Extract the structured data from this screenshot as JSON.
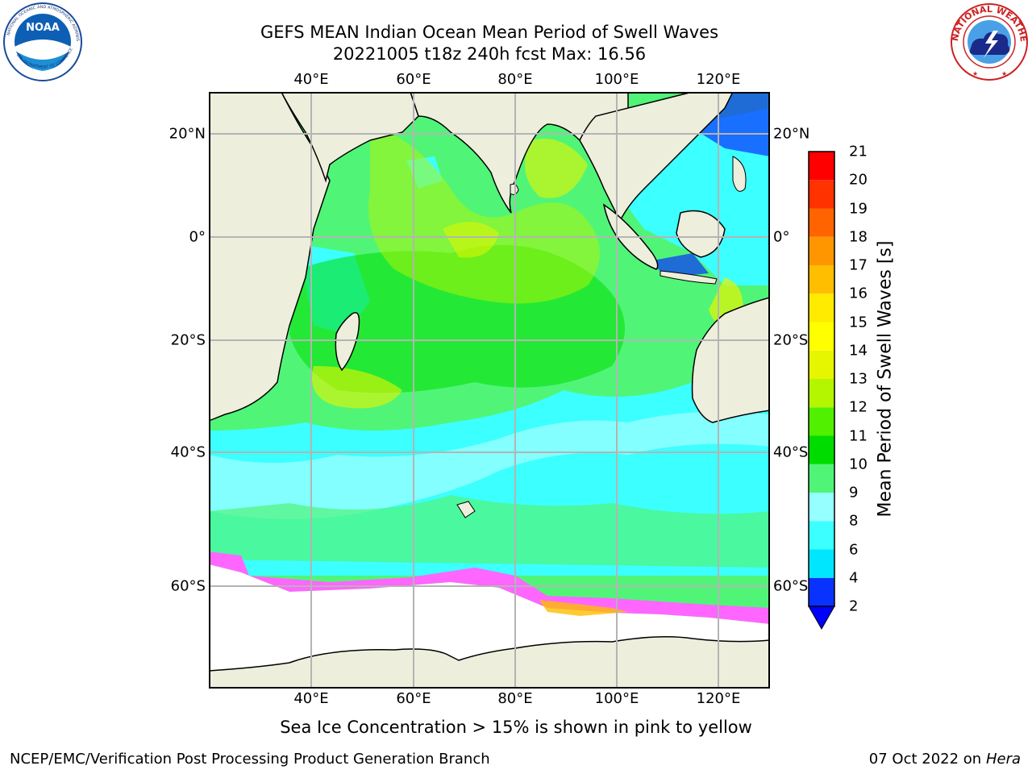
{
  "title": {
    "line1": "GEFS MEAN Indian Ocean Mean Period of Swell Waves",
    "line2": "20221005 t18z 240h fcst   Max: 16.56"
  },
  "axes": {
    "lon_ticks": [
      "40°E",
      "60°E",
      "80°E",
      "100°E",
      "120°E"
    ],
    "lat_ticks": [
      "20°N",
      "0°",
      "20°S",
      "40°S",
      "60°S"
    ]
  },
  "colorbar": {
    "label": "Mean Period of Swell Waves [s]",
    "ticks": [
      "2",
      "4",
      "6",
      "8",
      "9",
      "10",
      "11",
      "12",
      "13",
      "14",
      "15",
      "16",
      "17",
      "18",
      "19",
      "20",
      "21"
    ],
    "colors": [
      "#0a32ff",
      "#00e6ff",
      "#3cffff",
      "#96ffff",
      "#50f578",
      "#00dc00",
      "#50f000",
      "#b4f500",
      "#e6f500",
      "#ffff00",
      "#ffeb00",
      "#ffbe00",
      "#ff9600",
      "#ff6400",
      "#ff3200",
      "#ff0000"
    ],
    "extend_color": "#0000ff"
  },
  "caption": "Sea Ice Concentration > 15% is shown in pink to yellow",
  "footer": {
    "left": "NCEP/EMC/Verification Post Processing Product Generation Branch",
    "right_date": "07 Oct 2022 on ",
    "right_host": "Hera"
  },
  "logos": {
    "left": "NOAA",
    "right": "NATIONAL WEATHER SERVICE"
  },
  "colors": {
    "land": "#eeeedd",
    "ice": "#ffffff",
    "grid": "#b4b4b4"
  }
}
